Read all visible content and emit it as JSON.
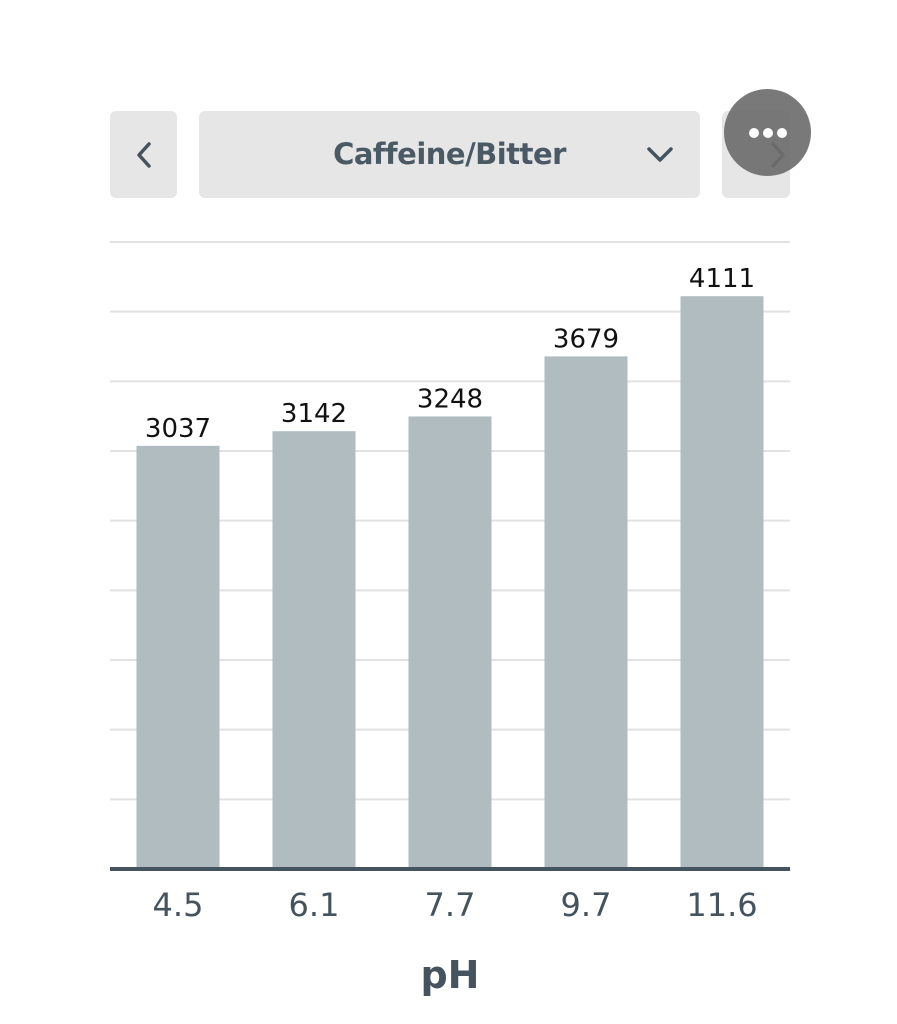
{
  "toolbar": {
    "prev_icon": "chevron-left-icon",
    "next_icon": "chevron-right-icon",
    "more_icon": "more-horizontal-icon",
    "select": {
      "selected": "Caffeine/Bitter",
      "icon": "chevron-down-icon"
    }
  },
  "colors": {
    "bar": "#b0bcc0",
    "axis": "#44535d",
    "grid": "#e2e2e2",
    "button_bg": "#e6e6e6",
    "text": "#44535d"
  },
  "chart_data": {
    "type": "bar",
    "categories": [
      "4.5",
      "6.1",
      "7.7",
      "9.7",
      "11.6"
    ],
    "values": [
      3037,
      3142,
      3248,
      3679,
      4111
    ],
    "title": "",
    "xlabel": "pH",
    "ylabel": "",
    "ylim": [
      0,
      4500
    ],
    "grid": true,
    "data_labels": true,
    "legend": "none"
  }
}
